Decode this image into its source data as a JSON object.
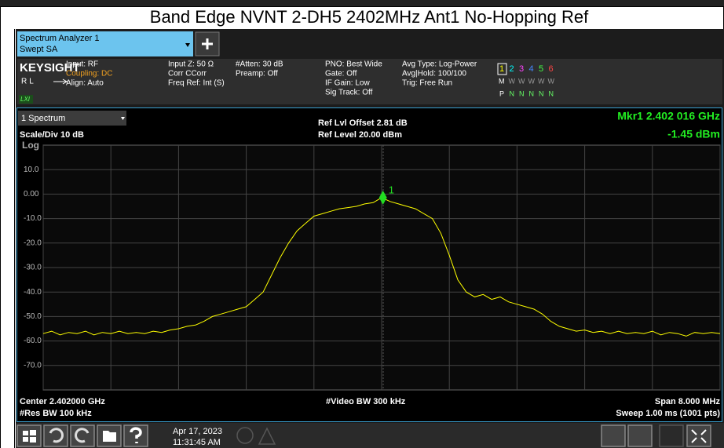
{
  "window": {
    "title": "Band Edge NVNT 2-DH5 2402MHz Ant1 No-Hopping Ref"
  },
  "tab": {
    "line1": "Spectrum Analyzer 1",
    "line2": "Swept SA"
  },
  "info": {
    "brand": "KEYSIGHT",
    "rl": "RL",
    "lxi": "LXI",
    "col1": [
      "Input: RF",
      "Coupling: DC",
      "Align: Auto"
    ],
    "col2": [
      "Input Z: 50 Ω",
      "Corr CCorr",
      "Freq Ref: Int (S)"
    ],
    "col3": [
      "#Atten: 30 dB",
      "Preamp: Off"
    ],
    "col4": [
      "PNO: Best Wide",
      "Gate: Off",
      "IF Gain: Low",
      "Sig Track: Off"
    ],
    "col5": [
      "Avg Type: Log-Power",
      "Avg|Hold: 100/100",
      "Trig: Free Run"
    ],
    "traces": [
      "1",
      "2",
      "3",
      "4",
      "5",
      "6"
    ],
    "modes": [
      "M",
      "W",
      "W",
      "W",
      "W",
      "W"
    ],
    "dets": [
      "P",
      "N",
      "N",
      "N",
      "N",
      "N"
    ]
  },
  "spectrum": {
    "window_name": "1 Spectrum",
    "ref_offset": "Ref Lvl Offset 2.81 dB",
    "ref_level": "Ref Level 20.00 dBm",
    "marker_label": "Mkr1  2.402 016 GHz",
    "marker_value": "-1.45 dBm",
    "scale": "Scale/Div 10 dB",
    "scale_type": "Log",
    "center": "Center 2.402000 GHz",
    "rbw": "#Res BW 100 kHz",
    "vbw": "#Video BW 300 kHz",
    "span": "Span 8.000 MHz",
    "sweep": "Sweep 1.00 ms (1001 pts)",
    "chart": {
      "type": "line",
      "color": "#ffff00",
      "xlim": [
        2398,
        2406
      ],
      "ylim": [
        -80,
        20
      ],
      "xticks": [
        2398,
        2398.8,
        2399.6,
        2400.4,
        2401.2,
        2402,
        2402.8,
        2403.6,
        2404.4,
        2405.2,
        2406
      ],
      "yticks": [
        {
          "value": 10,
          "label": "10.0"
        },
        {
          "value": 0,
          "label": "0.00"
        },
        {
          "value": -10,
          "label": "-10.0"
        },
        {
          "value": -20,
          "label": "-20.0"
        },
        {
          "value": -30,
          "label": "-30.0"
        },
        {
          "value": -40,
          "label": "-40.0"
        },
        {
          "value": -50,
          "label": "-50.0"
        },
        {
          "value": -60,
          "label": "-60.0"
        },
        {
          "value": -70,
          "label": "-70.0"
        }
      ],
      "x": [
        2398.0,
        2398.1,
        2398.2,
        2398.3,
        2398.4,
        2398.5,
        2398.6,
        2398.7,
        2398.8,
        2398.9,
        2399.0,
        2399.1,
        2399.2,
        2399.3,
        2399.4,
        2399.5,
        2399.6,
        2399.7,
        2399.8,
        2399.9,
        2400.0,
        2400.1,
        2400.2,
        2400.3,
        2400.4,
        2400.5,
        2400.6,
        2400.7,
        2400.8,
        2400.9,
        2401.0,
        2401.1,
        2401.2,
        2401.3,
        2401.4,
        2401.5,
        2401.6,
        2401.7,
        2401.8,
        2401.9,
        2402.0,
        2402.1,
        2402.2,
        2402.3,
        2402.4,
        2402.5,
        2402.6,
        2402.7,
        2402.8,
        2402.9,
        2403.0,
        2403.1,
        2403.2,
        2403.3,
        2403.4,
        2403.5,
        2403.6,
        2403.7,
        2403.8,
        2403.9,
        2404.0,
        2404.1,
        2404.2,
        2404.3,
        2404.4,
        2404.5,
        2404.6,
        2404.7,
        2404.8,
        2404.9,
        2405.0,
        2405.1,
        2405.2,
        2405.3,
        2405.4,
        2405.5,
        2405.6,
        2405.7,
        2405.8,
        2405.9,
        2406.0
      ],
      "values": [
        -57,
        -56,
        -57.5,
        -56.5,
        -57,
        -56,
        -57.5,
        -56.5,
        -57,
        -56,
        -57,
        -56.5,
        -57,
        -56,
        -56.5,
        -55.5,
        -55,
        -54,
        -53.5,
        -52,
        -50,
        -49,
        -48,
        -47,
        -46,
        -43,
        -40,
        -33,
        -26,
        -20,
        -15,
        -12,
        -9,
        -8,
        -7,
        -6,
        -5.5,
        -5,
        -4,
        -3.5,
        -1.45,
        -3,
        -4,
        -5,
        -6,
        -8,
        -10,
        -16,
        -25,
        -35,
        -40,
        -42,
        -41,
        -43,
        -42,
        -44,
        -45,
        -46,
        -47,
        -49,
        -52,
        -54,
        -55,
        -56,
        -55.5,
        -56.5,
        -56,
        -57,
        -56,
        -57,
        -56.5,
        -57,
        -56,
        -57.5,
        -56.5,
        -57,
        -58,
        -56.5,
        -57,
        -56.5,
        -57
      ],
      "marker": {
        "label": "1",
        "x": 2402.016,
        "y": -1.45,
        "color": "#22dd22"
      }
    }
  },
  "taskbar": {
    "date": "Apr 17, 2023",
    "time": "11:31:45 AM"
  }
}
